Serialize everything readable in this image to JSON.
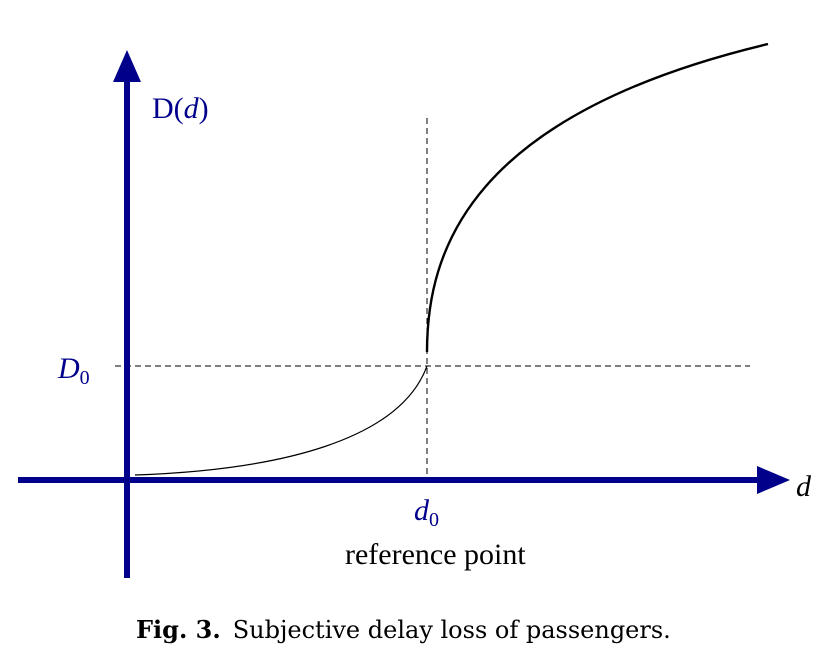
{
  "figure": {
    "y_axis_label": {
      "main": "D(",
      "var": "d",
      "close": ")"
    },
    "x_axis_label": "d",
    "d0_label": {
      "base": "d",
      "sub": "0"
    },
    "D0_label": {
      "base": "D",
      "sub": "0"
    },
    "reference_label": "reference point",
    "caption": {
      "number": "Fig. 3.",
      "text": "Subjective delay loss of passengers."
    }
  },
  "colors": {
    "axis": "#00008B",
    "curve": "#000000",
    "guide": "#000000"
  }
}
